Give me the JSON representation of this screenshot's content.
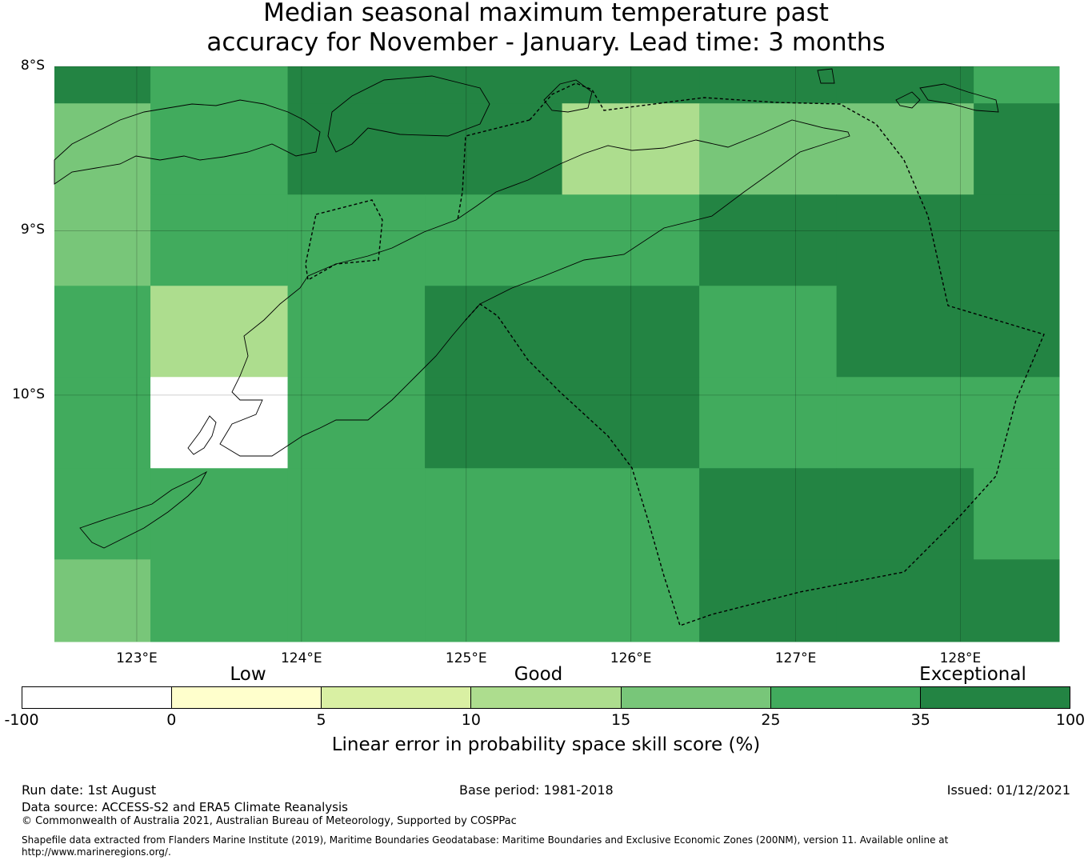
{
  "title_line1": "Median seasonal maximum temperature past",
  "title_line2": "accuracy for November - January. Lead time: 3 months",
  "map": {
    "lon_range": [
      122.5,
      128.6
    ],
    "lat_range": [
      -11.5,
      -8.0
    ],
    "cell_size_deg": [
      0.833,
      0.555
    ],
    "lon_ticks": [
      {
        "value": 123,
        "label": "123°E"
      },
      {
        "value": 124,
        "label": "124°E"
      },
      {
        "value": 125,
        "label": "125°E"
      },
      {
        "value": 126,
        "label": "126°E"
      },
      {
        "value": 127,
        "label": "127°E"
      },
      {
        "value": 128,
        "label": "128°E"
      }
    ],
    "lat_ticks": [
      {
        "value": -8,
        "label": "8°S"
      },
      {
        "value": -9,
        "label": "9°S"
      },
      {
        "value": -10,
        "label": "10°S"
      }
    ],
    "grid_classes": [
      [
        6,
        5,
        6,
        6,
        6,
        6,
        6,
        5
      ],
      [
        4,
        5,
        6,
        6,
        3,
        4,
        4,
        6
      ],
      [
        4,
        5,
        5,
        5,
        5,
        6,
        6,
        6
      ],
      [
        5,
        3,
        5,
        6,
        6,
        5,
        6,
        6
      ],
      [
        5,
        0,
        5,
        6,
        6,
        5,
        5,
        5
      ],
      [
        5,
        5,
        5,
        5,
        5,
        6,
        6,
        5
      ],
      [
        4,
        5,
        5,
        5,
        5,
        6,
        6,
        6
      ]
    ]
  },
  "colorbar": {
    "title": "Linear error in probability space skill score (%)",
    "tick_labels": [
      "-100",
      "0",
      "5",
      "10",
      "15",
      "25",
      "35",
      "100"
    ],
    "colors": [
      "#ffffff",
      "#ffffcc",
      "#d9f0a3",
      "#addd8e",
      "#78c679",
      "#41ab5d",
      "#238443"
    ],
    "category_labels": [
      "Low",
      "Good",
      "Exceptional"
    ]
  },
  "footer": {
    "run_date": "Run date: 1st August",
    "base_period": "Base period: 1981-2018",
    "issued": "Issued: 01/12/2021",
    "data_source": "Data source: ACCESS-S2 and ERA5 Climate Reanalysis",
    "copyright": "© Commonwealth of Australia 2021, Australian Bureau of Meteorology, Supported by COSPPac",
    "shapefile_line1": "Shapefile data extracted from Flanders Marine Institute (2019), Maritime Boundaries Geodatabase: Maritime Boundaries and Exclusive Economic Zones (200NM), version 11. Available online at",
    "shapefile_line2": "http://www.marineregions.org/."
  }
}
